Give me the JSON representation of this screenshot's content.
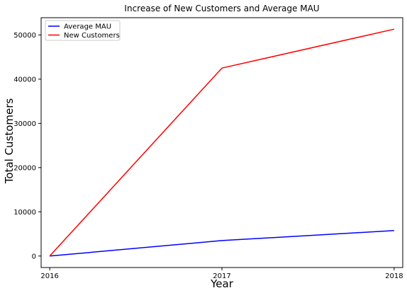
{
  "chart_data": {
    "type": "line",
    "title": "Increase of New Customers and Average MAU",
    "xlabel": "Year",
    "ylabel": "Total Customers",
    "x": [
      2016,
      2017,
      2018
    ],
    "x_tick_labels": [
      "2016",
      "2017",
      "2018"
    ],
    "y_ticks": [
      0,
      10000,
      20000,
      30000,
      40000,
      50000
    ],
    "y_tick_labels": [
      "0",
      "10000",
      "20000",
      "30000",
      "40000",
      "50000"
    ],
    "xlim": [
      2015.95,
      2018.05
    ],
    "ylim": [
      -2600,
      53900
    ],
    "series": [
      {
        "name": "Average MAU",
        "color": "#0000ff",
        "values": [
          0,
          3500,
          5750
        ]
      },
      {
        "name": "New Customers",
        "color": "#ff0000",
        "values": [
          0,
          42500,
          51300
        ]
      }
    ],
    "legend": {
      "position": "top-left",
      "entries": [
        "Average MAU",
        "New Customers"
      ]
    },
    "grid": false
  }
}
